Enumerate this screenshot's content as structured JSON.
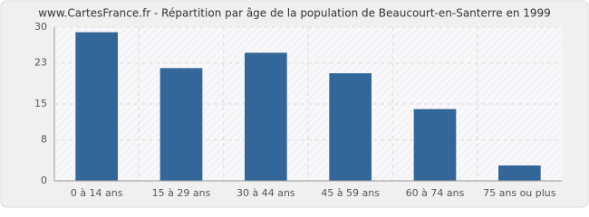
{
  "chart_data": {
    "type": "bar",
    "title": "www.CartesFrance.fr - Répartition par âge de la population de Beaucourt-en-Santerre en 1999",
    "categories": [
      "0 à 14 ans",
      "15 à 29 ans",
      "30 à 44 ans",
      "45 à 59 ans",
      "60 à 74 ans",
      "75 ans ou plus"
    ],
    "values": [
      29,
      22,
      25,
      21,
      14,
      3
    ],
    "color": "#336699",
    "ylim": [
      0,
      30
    ],
    "yticks": [
      0,
      8,
      15,
      23,
      30
    ],
    "grid": true
  }
}
